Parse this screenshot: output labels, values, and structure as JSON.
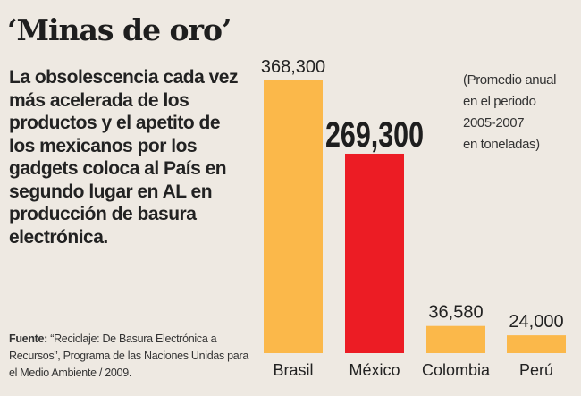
{
  "title": "‘Minas de oro’",
  "lead": "La obsolescencia cada vez más acelerada de los productos y el apetito de los mexicanos por los gadgets coloca al País en segundo lugar en AL en producción de basura electrónica.",
  "source": {
    "label": "Fuente:",
    "text": " “Reciclaje: De Basura Electrónica a Recursos”, Programa de las Naciones Unidas para el Medio Ambiente / 2009."
  },
  "note": [
    "(Promedio anual",
    "en el periodo",
    "2005-2007",
    "en toneladas)"
  ],
  "colors": {
    "default": "#fbb84a",
    "highlight": "#ec1c24"
  },
  "chart_data": {
    "type": "bar",
    "title": "‘Minas de oro’",
    "categories": [
      "Brasil",
      "México",
      "Colombia",
      "Perú"
    ],
    "values": [
      368300,
      269300,
      36580,
      24000
    ],
    "value_labels": [
      "368,300",
      "269,300",
      "36,580",
      "24,000"
    ],
    "highlight": "México",
    "ylabel": "toneladas",
    "ylim": [
      0,
      368300
    ]
  }
}
